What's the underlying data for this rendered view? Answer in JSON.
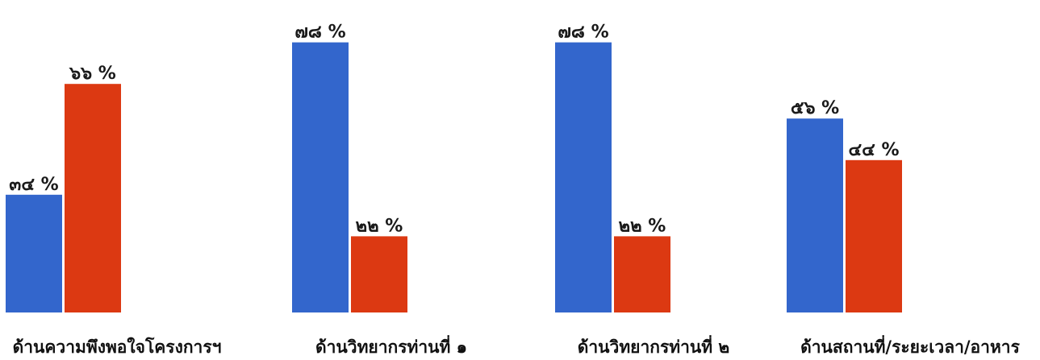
{
  "chart_data": {
    "type": "bar",
    "categories": [
      "ด้านความพึงพอใจโครงการฯ",
      "ด้านวิทยากรท่านที่ ๑",
      "ด้านวิทยากรท่านที่ ๒",
      "ด้านสถานที่/ระยะเวลา/อาหาร"
    ],
    "series": [
      {
        "color": "#3366cc",
        "values": [
          34,
          78,
          78,
          56
        ]
      },
      {
        "color": "#dc3912",
        "values": [
          66,
          22,
          22,
          44
        ]
      }
    ],
    "data_labels": [
      [
        "๓๔ %",
        "๗๘ %",
        "๗๘ %",
        "๕๖ %"
      ],
      [
        "๖๖ %",
        "๒๒ %",
        "๒๒ %",
        "๔๔ %"
      ]
    ],
    "ylim": [
      0,
      80
    ],
    "grid": false,
    "legend": "none"
  }
}
